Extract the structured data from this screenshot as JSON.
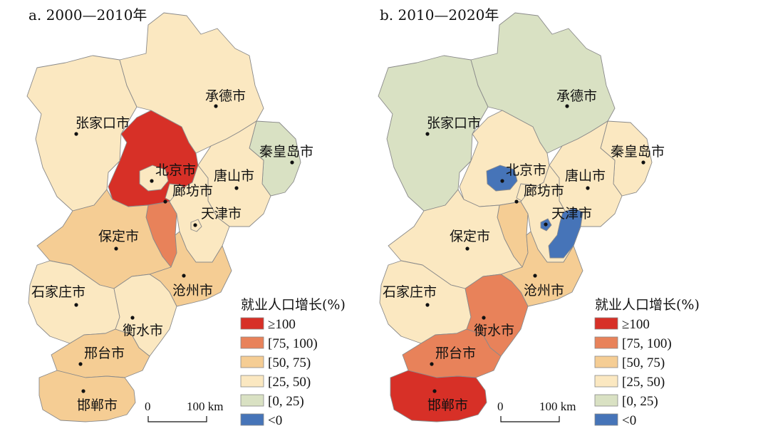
{
  "colors": {
    "ge100": "#d73027",
    "75_100": "#e8825a",
    "50_75": "#f5cd94",
    "25_50": "#fbe8c1",
    "0_25": "#d9e1c3",
    "lt0": "#4674b8",
    "ring": "#f3d9a8",
    "border": "#8a8a8a"
  },
  "legend": {
    "title": "就业人口增长(%)",
    "items": [
      {
        "key": "ge100",
        "label": "≥100"
      },
      {
        "key": "75_100",
        "label": "[75, 100)"
      },
      {
        "key": "50_75",
        "label": "[50, 75)"
      },
      {
        "key": "25_50",
        "label": "[25, 50)"
      },
      {
        "key": "0_25",
        "label": "[0, 25)"
      },
      {
        "key": "lt0",
        "label": "<0"
      }
    ]
  },
  "scalebar": {
    "start": "0",
    "end": "100 km"
  },
  "panels": [
    {
      "title": "a. 2000—2010年",
      "classes": {
        "zhangjiakou": "25_50",
        "chengde": "25_50",
        "qinhuangdao": "0_25",
        "tangshan": "25_50",
        "beijing": "ge100",
        "beijing_core": "25_50",
        "tianjin": "25_50",
        "tianjin_core": "25_50",
        "langfang_north": "25_50",
        "langfang_south": "75_100",
        "baoding": "50_75",
        "shijiazhuang": "25_50",
        "cangzhou": "50_75",
        "hengshui": "25_50",
        "xingtai": "50_75",
        "handan": "50_75"
      },
      "labels": {
        "zhangjiakou": "张家口市",
        "chengde": "承德市",
        "qinhuangdao": "秦皇岛市",
        "tangshan": "唐山市",
        "beijing": "北京市",
        "langfang": "廊坊市",
        "tianjin": "天津市",
        "baoding": "保定市",
        "shijiazhuang": "石家庄市",
        "cangzhou": "沧州市",
        "hengshui": "衡水市",
        "xingtai": "邢台市",
        "handan": "邯郸市"
      }
    },
    {
      "title": "b. 2010—2020年",
      "classes": {
        "zhangjiakou": "0_25",
        "chengde": "0_25",
        "qinhuangdao": "25_50",
        "tangshan": "25_50",
        "beijing": "25_50",
        "beijing_core": "lt0",
        "tianjin": "25_50",
        "tianjin_core": "lt0",
        "tianjin_coast": "lt0",
        "langfang_north": "25_50",
        "langfang_south": "50_75",
        "baoding": "25_50",
        "shijiazhuang": "25_50",
        "cangzhou": "50_75",
        "hengshui": "75_100",
        "xingtai": "75_100",
        "handan": "ge100"
      },
      "labels": {
        "zhangjiakou": "张家口市",
        "chengde": "承德市",
        "qinhuangdao": "秦皇岛市",
        "tangshan": "唐山市",
        "beijing": "北京市",
        "langfang": "廊坊市",
        "tianjin": "天津市",
        "baoding": "保定市",
        "shijiazhuang": "石家庄市",
        "cangzhou": "沧州市",
        "hengshui": "衡水市",
        "xingtai": "邢台市",
        "handan": "邯郸市"
      }
    }
  ]
}
